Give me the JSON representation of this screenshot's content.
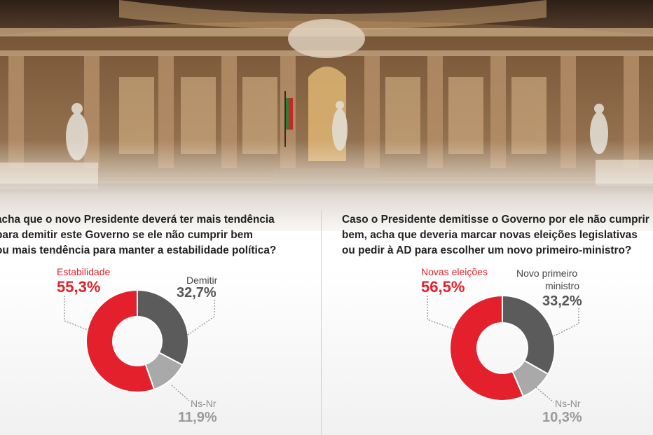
{
  "chart_data": [
    {
      "type": "pie",
      "title": "acha que o novo Presidente deverá ter mais tendência\npara demitir este Governo se ele não cumprir bem\nou mais tendência para manter a estabilidade política?",
      "slices": [
        {
          "label": "Estabilidade",
          "value": 55.3,
          "display": "55,3%",
          "color": "#e3202b"
        },
        {
          "label": "Demitir",
          "value": 32.7,
          "display": "32,7%",
          "color": "#5b5b5b"
        },
        {
          "label": "Ns-Nr",
          "value": 11.9,
          "display": "11,9%",
          "color": "#a9a9a9"
        }
      ]
    },
    {
      "type": "pie",
      "title": "Caso o Presidente demitisse o Governo por ele não cumprir\nbem, acha que deveria marcar novas eleições legislativas\nou pedir à AD para escolher um novo primeiro-ministro?",
      "slices": [
        {
          "label": "Novas eleições",
          "value": 56.5,
          "display": "56,5%",
          "color": "#e3202b"
        },
        {
          "label": "Novo primeiro ministro",
          "value": 33.2,
          "display": "33,2%",
          "color": "#5b5b5b"
        },
        {
          "label": "Ns-Nr",
          "value": 10.3,
          "display": "10,3%",
          "color": "#a9a9a9"
        }
      ]
    }
  ],
  "labels": {
    "left": {
      "red_label": "Estabilidade",
      "red_value": "55,3%",
      "dark_label": "Demitir",
      "dark_value": "32,7%",
      "light_label": "Ns-Nr",
      "light_value": "11,9%"
    },
    "right": {
      "red_label": "Novas eleições",
      "red_value": "56,5%",
      "dark_label_line1": "Novo primeiro",
      "dark_label_line2": "ministro",
      "dark_value": "33,2%",
      "light_label": "Ns-Nr",
      "light_value": "10,3%"
    }
  }
}
